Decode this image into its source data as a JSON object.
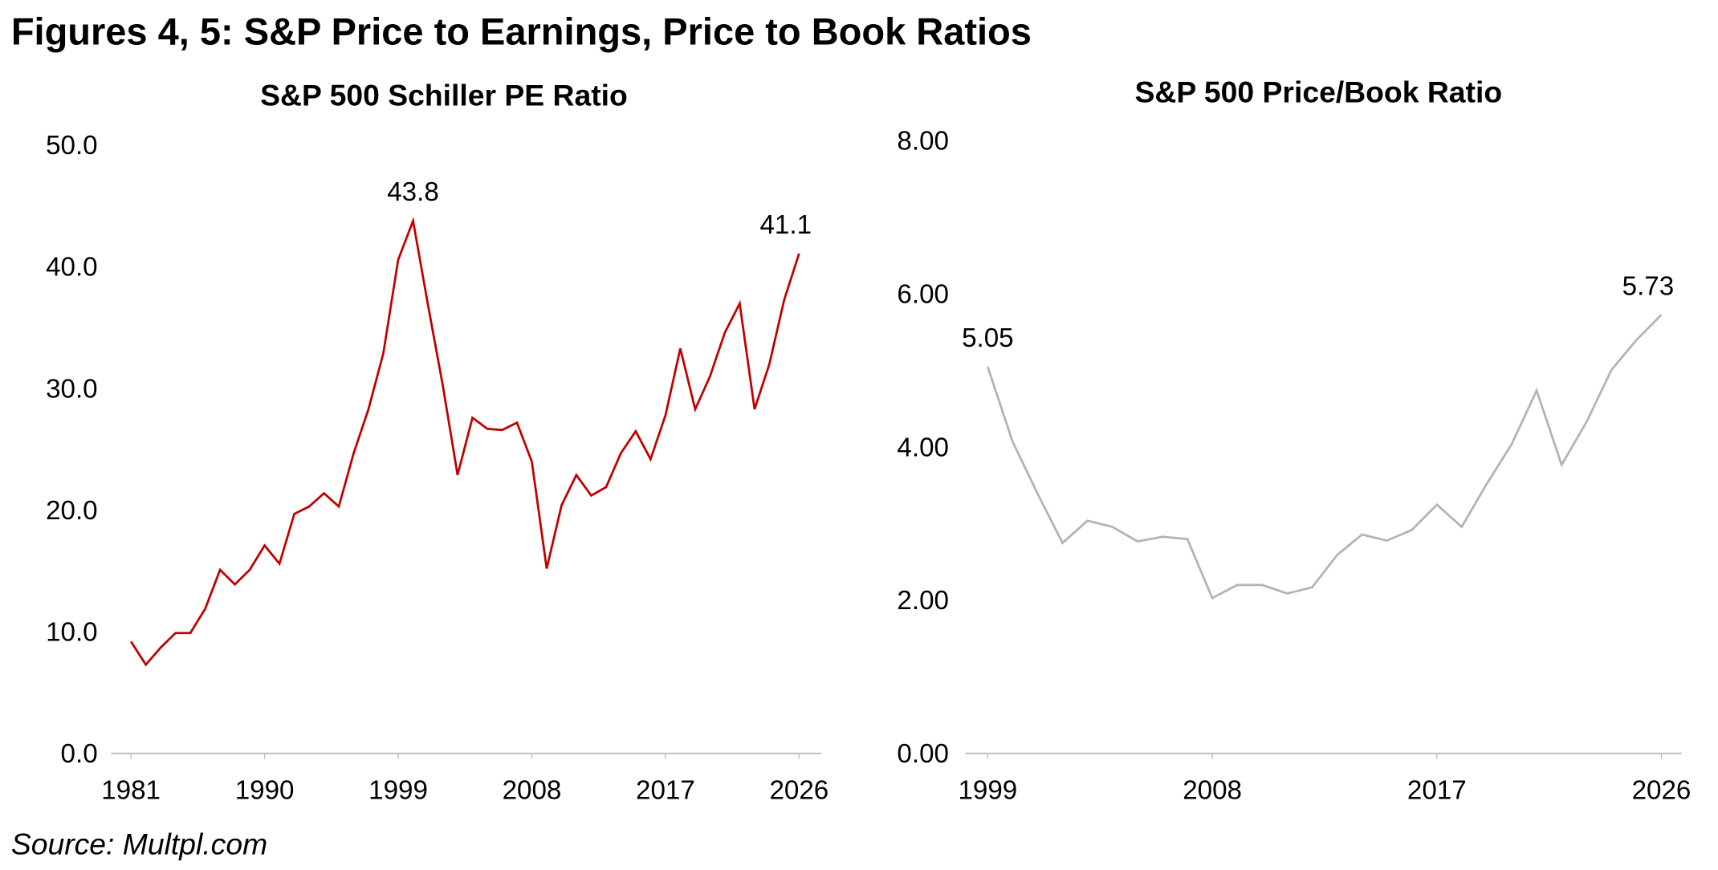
{
  "title": "Figures 4, 5: S&P Price to Earnings, Price to Book Ratios",
  "source": "Source: Multpl.com",
  "chart_data": [
    {
      "type": "line",
      "title": "S&P 500 Schiller PE Ratio",
      "color": "#c00000",
      "x": [
        1981,
        1982,
        1983,
        1984,
        1985,
        1986,
        1987,
        1988,
        1989,
        1990,
        1991,
        1992,
        1993,
        1994,
        1995,
        1996,
        1997,
        1998,
        1999,
        2000,
        2001,
        2002,
        2003,
        2004,
        2005,
        2006,
        2007,
        2008,
        2009,
        2010,
        2011,
        2012,
        2013,
        2014,
        2015,
        2016,
        2017,
        2018,
        2019,
        2020,
        2021,
        2022,
        2023,
        2024,
        2025,
        2026
      ],
      "values": [
        9.2,
        7.3,
        8.7,
        9.9,
        9.9,
        11.9,
        15.1,
        13.9,
        15.1,
        17.1,
        15.6,
        19.7,
        20.3,
        21.4,
        20.3,
        24.7,
        28.3,
        32.9,
        40.6,
        43.8,
        36.9,
        30.3,
        22.9,
        27.6,
        26.7,
        26.6,
        27.2,
        24.0,
        15.2,
        20.4,
        22.9,
        21.2,
        21.9,
        24.7,
        26.5,
        24.2,
        27.8,
        33.3,
        28.3,
        31.0,
        34.6,
        37.0,
        28.3,
        32.0,
        37.3,
        41.1
      ],
      "value_labels": [
        null,
        null,
        null,
        null,
        null,
        null,
        null,
        null,
        null,
        null,
        null,
        null,
        null,
        null,
        null,
        null,
        null,
        null,
        null,
        "43.8",
        null,
        null,
        null,
        null,
        null,
        null,
        null,
        null,
        null,
        null,
        null,
        null,
        null,
        null,
        null,
        null,
        null,
        null,
        null,
        null,
        null,
        null,
        null,
        null,
        null,
        "41.1"
      ],
      "xlim": [
        1981,
        2026
      ],
      "xticks": [
        1981,
        1990,
        1999,
        2008,
        2017,
        2026
      ],
      "ylim": [
        0,
        50
      ],
      "yticks": [
        {
          "value": 0,
          "label": "0.0"
        },
        {
          "value": 10,
          "label": "10.0"
        },
        {
          "value": 20,
          "label": "20.0"
        },
        {
          "value": 30,
          "label": "30.0"
        },
        {
          "value": 40,
          "label": "40.0"
        },
        {
          "value": 50,
          "label": "50.0"
        }
      ],
      "grid": false
    },
    {
      "type": "line",
      "title": "S&P 500 Price/Book Ratio",
      "color": "#b3b3b3",
      "x": [
        1999,
        2000,
        2001,
        2002,
        2003,
        2004,
        2005,
        2006,
        2007,
        2008,
        2009,
        2010,
        2011,
        2012,
        2013,
        2014,
        2015,
        2016,
        2017,
        2018,
        2019,
        2020,
        2021,
        2022,
        2023,
        2024,
        2025,
        2026
      ],
      "values": [
        5.05,
        4.07,
        3.39,
        2.75,
        3.04,
        2.96,
        2.77,
        2.83,
        2.8,
        2.03,
        2.2,
        2.2,
        2.09,
        2.17,
        2.59,
        2.86,
        2.78,
        2.92,
        3.25,
        2.96,
        3.52,
        4.04,
        4.74,
        3.77,
        4.33,
        5.01,
        5.4,
        5.73
      ],
      "value_labels": [
        "5.05",
        null,
        null,
        null,
        null,
        null,
        null,
        null,
        null,
        null,
        null,
        null,
        null,
        null,
        null,
        null,
        null,
        null,
        null,
        null,
        null,
        null,
        null,
        null,
        null,
        null,
        null,
        "5.73"
      ],
      "xlim": [
        1999,
        2026
      ],
      "xticks": [
        1999,
        2008,
        2017,
        2026
      ],
      "ylim": [
        0,
        8
      ],
      "yticks": [
        {
          "value": 0,
          "label": "0.00"
        },
        {
          "value": 2,
          "label": "2.00"
        },
        {
          "value": 4,
          "label": "4.00"
        },
        {
          "value": 6,
          "label": "6.00"
        },
        {
          "value": 8,
          "label": "8.00"
        }
      ],
      "grid": false
    }
  ]
}
